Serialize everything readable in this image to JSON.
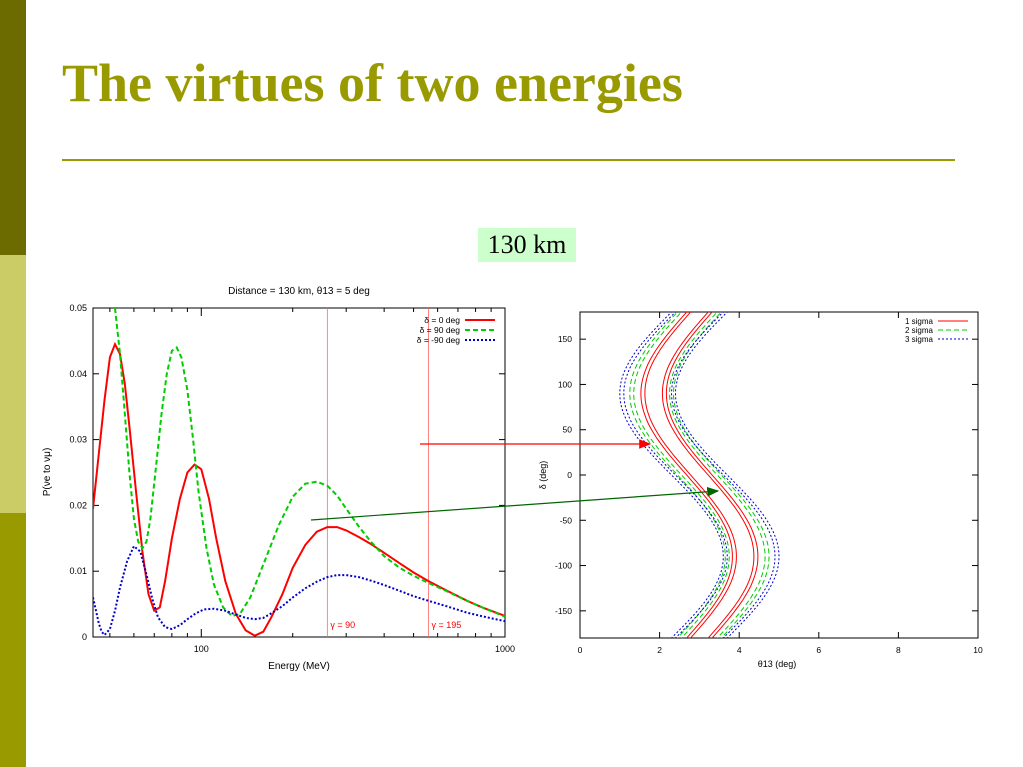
{
  "slide": {
    "title": "The virtues of  two energies",
    "distance_label": "130 km",
    "colors": {
      "sidebar_top": "#6b6b00",
      "sidebar_middle": "#cccc66",
      "sidebar_bottom": "#999900",
      "title": "#999900",
      "label_background": "#ccffcc",
      "arrow_red": "#ff0000",
      "arrow_green": "#006600"
    }
  },
  "chart_data": [
    {
      "type": "line",
      "title": "Distance = 130 km, θ13 = 5 deg",
      "xlabel": "Energy (MeV)",
      "ylabel": "P(νe to νμ)",
      "xscale": "log",
      "xlim": [
        44,
        1000
      ],
      "ylim": [
        0,
        0.05
      ],
      "xticks": [
        {
          "value": 100,
          "label": "100"
        },
        {
          "value": 1000,
          "label": "1000"
        }
      ],
      "yticks": [
        {
          "value": 0,
          "label": "0"
        },
        {
          "value": 0.01,
          "label": "0.01"
        },
        {
          "value": 0.02,
          "label": "0.02"
        },
        {
          "value": 0.03,
          "label": "0.03"
        },
        {
          "value": 0.04,
          "label": "0.04"
        },
        {
          "value": 0.05,
          "label": "0.05"
        }
      ],
      "legend_position": "top-right",
      "series": [
        {
          "name": "δ = 0 deg",
          "color": "#ff0000",
          "dash": "solid",
          "x": [
            44,
            46,
            48,
            50,
            52,
            54,
            56,
            58,
            61,
            64,
            67,
            70,
            73,
            76,
            80,
            85,
            90,
            95,
            100,
            106,
            112,
            120,
            130,
            140,
            150,
            160,
            170,
            185,
            200,
            220,
            240,
            260,
            280,
            300,
            330,
            360,
            400,
            450,
            500,
            560,
            640,
            750,
            850,
            1000
          ],
          "y": [
            0.0195,
            0.028,
            0.036,
            0.0425,
            0.0445,
            0.043,
            0.0385,
            0.032,
            0.022,
            0.013,
            0.0065,
            0.004,
            0.0045,
            0.0085,
            0.015,
            0.021,
            0.025,
            0.0262,
            0.0255,
            0.021,
            0.015,
            0.0085,
            0.0035,
            0.001,
            0.0002,
            0.0008,
            0.003,
            0.0065,
            0.0105,
            0.014,
            0.016,
            0.0167,
            0.0167,
            0.0162,
            0.0152,
            0.0142,
            0.0128,
            0.0112,
            0.0098,
            0.0085,
            0.0071,
            0.0055,
            0.0044,
            0.0032
          ]
        },
        {
          "name": "δ = 90 deg",
          "color": "#00cc00",
          "dash": "dashed",
          "x": [
            52,
            54,
            56,
            58,
            60,
            62,
            64,
            66,
            68,
            71,
            74,
            77,
            80,
            83,
            86,
            90,
            94,
            98,
            104,
            110,
            118,
            126,
            134,
            145,
            160,
            180,
            200,
            220,
            240,
            260,
            280,
            300,
            330,
            360,
            400,
            450,
            500,
            560,
            640,
            750,
            850,
            1000
          ],
          "y": [
            0.05,
            0.043,
            0.034,
            0.025,
            0.018,
            0.0145,
            0.0135,
            0.0145,
            0.018,
            0.026,
            0.034,
            0.04,
            0.0435,
            0.044,
            0.0425,
            0.0375,
            0.03,
            0.022,
            0.0135,
            0.008,
            0.0045,
            0.0032,
            0.0035,
            0.006,
            0.011,
            0.017,
            0.0213,
            0.0233,
            0.0236,
            0.023,
            0.0215,
            0.0195,
            0.0168,
            0.0146,
            0.0123,
            0.0105,
            0.0093,
            0.0082,
            0.007,
            0.0055,
            0.0044,
            0.0031
          ]
        },
        {
          "name": "δ = -90 deg",
          "color": "#0000cc",
          "dash": "dotted",
          "x": [
            44,
            45,
            46,
            47,
            48,
            50,
            52,
            54,
            57,
            60,
            63,
            66,
            69,
            72,
            76,
            80,
            85,
            90,
            96,
            102,
            110,
            120,
            130,
            140,
            150,
            160,
            170,
            185,
            200,
            220,
            240,
            260,
            280,
            300,
            330,
            360,
            400,
            450,
            500,
            560,
            640,
            750,
            850,
            1000
          ],
          "y": [
            0.006,
            0.004,
            0.002,
            0.0008,
            0.0003,
            0.0012,
            0.004,
            0.0075,
            0.0115,
            0.0138,
            0.013,
            0.0095,
            0.0058,
            0.003,
            0.0015,
            0.0012,
            0.0018,
            0.0027,
            0.0036,
            0.0042,
            0.0043,
            0.004,
            0.0034,
            0.0029,
            0.0027,
            0.0029,
            0.0036,
            0.0047,
            0.006,
            0.0074,
            0.0084,
            0.0091,
            0.0094,
            0.0094,
            0.0091,
            0.0086,
            0.0079,
            0.007,
            0.0062,
            0.0055,
            0.0047,
            0.0037,
            0.0031,
            0.0024
          ]
        }
      ],
      "annotations": [
        {
          "type": "vline",
          "x": 260,
          "label": "γ = 90",
          "color": "#ff6666"
        },
        {
          "type": "vline",
          "x": 560,
          "label": "γ = 195",
          "color": "#ff6666"
        }
      ]
    },
    {
      "type": "line",
      "title": "",
      "xlabel": "θ13 (deg)",
      "ylabel": "δ (deg)",
      "xlim": [
        0,
        10
      ],
      "ylim": [
        -180,
        180
      ],
      "xticks": [
        {
          "value": 0,
          "label": "0"
        },
        {
          "value": 2,
          "label": "2"
        },
        {
          "value": 4,
          "label": "4"
        },
        {
          "value": 6,
          "label": "6"
        },
        {
          "value": 8,
          "label": "8"
        },
        {
          "value": 10,
          "label": "10"
        }
      ],
      "yticks": [
        {
          "value": -150,
          "label": "-150"
        },
        {
          "value": -100,
          "label": "-100"
        },
        {
          "value": -50,
          "label": "-50"
        },
        {
          "value": 0,
          "label": "0"
        },
        {
          "value": 50,
          "label": "50"
        },
        {
          "value": 100,
          "label": "100"
        },
        {
          "value": 150,
          "label": "150"
        }
      ],
      "legend_position": "top-right",
      "series": [
        {
          "name": "1 sigma",
          "color": "#ff0000",
          "dash": "solid"
        },
        {
          "name": "2 sigma",
          "color": "#00cc00",
          "dash": "dashed"
        },
        {
          "name": "3 sigma",
          "color": "#0000cc",
          "dash": "dotted"
        }
      ],
      "contours": [
        {
          "level": "1 sigma",
          "center_theta": 3.0,
          "amplitude": 1.15,
          "offsets": [
            -0.22,
            0.22,
            -0.32,
            0.32
          ]
        },
        {
          "level": "2 sigma",
          "center_theta": 3.0,
          "amplitude": 1.2,
          "offsets": [
            -0.45,
            0.45,
            -0.55,
            0.55
          ]
        },
        {
          "level": "3 sigma",
          "center_theta": 3.0,
          "amplitude": 1.3,
          "offsets": [
            -0.6,
            0.6,
            -0.7,
            0.7
          ]
        }
      ]
    }
  ]
}
